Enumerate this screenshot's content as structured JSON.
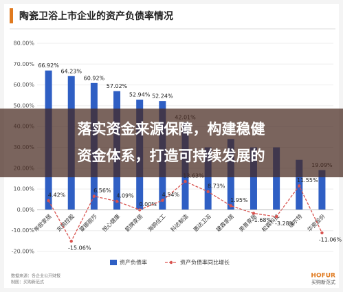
{
  "chart_data": {
    "type": "bar",
    "title": "陶瓷卫浴上市企业的资产负债率情况",
    "banner": [
      "落实资金来源保障，构建稳健",
      "资金体系，打造可持续发展的"
    ],
    "source": "数据来源：各企业公开财报",
    "credit": "制图：买购新范式",
    "logo": "HOFUR",
    "logo_sub": "买购新范式",
    "categories": [
      "帝欧家居",
      "东鹏控股",
      "蒙娜丽莎",
      "悦心健康",
      "箭牌家居",
      "海鸥住工",
      "科达制造",
      "惠达卫浴",
      "建霖家居",
      "奥普家居",
      "松霖科技",
      "瑞尔特",
      "华瓷股份"
    ],
    "series": [
      {
        "name": "资产负债率",
        "color": "#2f5fc4",
        "values": [
          66.92,
          64.23,
          60.92,
          57.02,
          52.94,
          52.24,
          42.01,
          30,
          34,
          30,
          30,
          24,
          19.09
        ],
        "value_labels": [
          "66.92%",
          "64.23%",
          "60.92%",
          "57.02%",
          "52.94%",
          "52.24%",
          "42.01%",
          null,
          null,
          null,
          null,
          null,
          "19.09%"
        ]
      },
      {
        "name": "资产负债率同比增长",
        "color": "#d9534f",
        "values": [
          4.42,
          -15.06,
          6.56,
          4.09,
          0.0,
          4.54,
          13.63,
          8.73,
          1.95,
          -1.68,
          -3.28,
          11.55,
          -11.06
        ],
        "value_labels": [
          "4.42%",
          "-15.06%",
          "6.56%",
          "4.09%",
          "0.00%",
          "4.54%",
          "13.63%",
          "8.73%",
          "1.95%",
          "-1.68%",
          "-3.28%",
          "11.55%",
          "-11.06%"
        ]
      }
    ],
    "ylim": [
      -20,
      80
    ],
    "yticks": [
      {
        "value": -20,
        "label": "-20.00%"
      },
      {
        "value": -10,
        "label": "-10.00%"
      },
      {
        "value": 0,
        "label": "0.00%"
      },
      {
        "value": 10,
        "label": "10.00%"
      },
      {
        "value": 20,
        "label": "20.00%"
      },
      {
        "value": 30,
        "label": "30.00%"
      },
      {
        "value": 40,
        "label": "40.00%"
      },
      {
        "value": 50,
        "label": "50.00%"
      },
      {
        "value": 60,
        "label": "60.00%"
      },
      {
        "value": 70,
        "label": "70.00%"
      },
      {
        "value": 80,
        "label": "80.00%"
      }
    ]
  }
}
